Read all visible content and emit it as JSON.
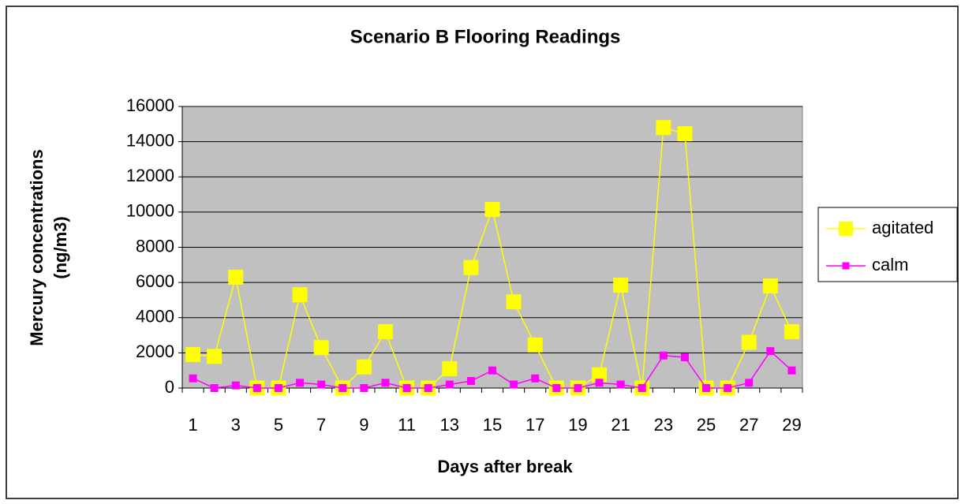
{
  "chart_data": {
    "type": "line",
    "title": "Scenario B Flooring Readings",
    "xlabel": "Days after break",
    "ylabel": [
      "Mercury concentrations",
      "(ng/m3)"
    ],
    "categories": [
      "1",
      null,
      "3",
      null,
      "5",
      null,
      "7",
      null,
      "9",
      null,
      "11",
      null,
      "13",
      null,
      "15",
      null,
      "17",
      null,
      "19",
      null,
      "21",
      null,
      "23",
      null,
      "25",
      null,
      "27",
      null,
      "29"
    ],
    "series": [
      {
        "name": "agitated",
        "color": "#ffff00",
        "values": [
          1900,
          1800,
          6300,
          0,
          0,
          5300,
          2300,
          0,
          1200,
          3200,
          0,
          0,
          1100,
          6850,
          10150,
          4900,
          2450,
          0,
          0,
          750,
          5850,
          0,
          14800,
          14450,
          0,
          0,
          2600,
          5800,
          3200
        ]
      },
      {
        "name": "calm",
        "color": "#ff00ff",
        "values": [
          550,
          0,
          150,
          0,
          0,
          300,
          200,
          0,
          0,
          300,
          0,
          0,
          200,
          400,
          1000,
          200,
          550,
          0,
          0,
          300,
          200,
          0,
          1850,
          1750,
          0,
          0,
          300,
          2100,
          1000
        ]
      }
    ],
    "ylim": [
      0,
      16000
    ],
    "yticks": [
      0,
      2000,
      4000,
      6000,
      8000,
      10000,
      12000,
      14000,
      16000
    ],
    "grid": true,
    "legend": "right"
  }
}
